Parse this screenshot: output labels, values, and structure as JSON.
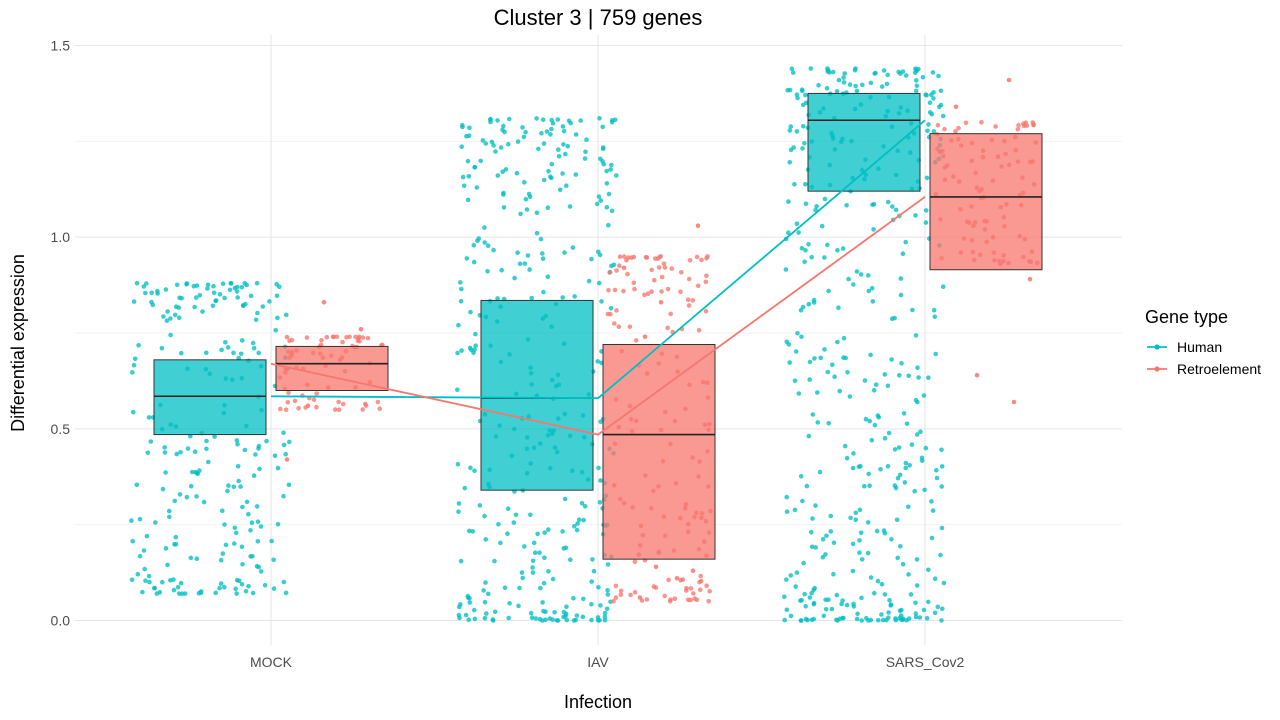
{
  "chart_data": {
    "type": "box",
    "title": "Cluster 3 | 759 genes",
    "xlabel": "Infection",
    "ylabel": "Differential expression",
    "categories": [
      "MOCK",
      "IAV",
      "SARS_Cov2"
    ],
    "ylim": [
      -0.05,
      1.53
    ],
    "yticks": [
      0.0,
      0.5,
      1.0,
      1.5
    ],
    "ytick_labels": [
      "0.0",
      "0.5",
      "1.0",
      "1.5"
    ],
    "grid": true,
    "legend": {
      "title": "Gene type",
      "position": "right"
    },
    "series": [
      {
        "name": "Human",
        "color": "#00BFC4",
        "boxes": [
          {
            "category": "MOCK",
            "q1": 0.485,
            "median": 0.585,
            "q3": 0.68
          },
          {
            "category": "IAV",
            "q1": 0.34,
            "median": 0.58,
            "q3": 0.835
          },
          {
            "category": "SARS_Cov2",
            "q1": 1.12,
            "median": 1.305,
            "q3": 1.375
          }
        ],
        "line_values": [
          0.585,
          0.58,
          1.305
        ],
        "jitter_ranges": [
          {
            "category": "MOCK",
            "min": 0.07,
            "max": 0.88,
            "n": 240
          },
          {
            "category": "IAV",
            "min": 0.0,
            "max": 1.31,
            "n": 360
          },
          {
            "category": "SARS_Cov2",
            "min": 0.0,
            "max": 1.44,
            "n": 420
          }
        ]
      },
      {
        "name": "Retroelement",
        "color": "#F8766D",
        "boxes": [
          {
            "category": "MOCK",
            "q1": 0.6,
            "median": 0.67,
            "q3": 0.715
          },
          {
            "category": "IAV",
            "q1": 0.16,
            "median": 0.485,
            "q3": 0.72
          },
          {
            "category": "SARS_Cov2",
            "q1": 0.915,
            "median": 1.105,
            "q3": 1.27
          }
        ],
        "line_values": [
          0.67,
          0.485,
          1.105
        ],
        "points": [
          {
            "category": "MOCK",
            "y": 0.42
          },
          {
            "category": "MOCK",
            "y": 0.83
          },
          {
            "category": "MOCK",
            "y": 0.76
          },
          {
            "category": "MOCK",
            "y": 0.56
          },
          {
            "category": "MOCK",
            "y": 0.65
          },
          {
            "category": "MOCK",
            "y": 0.7
          },
          {
            "category": "IAV",
            "y": 0.14
          },
          {
            "category": "IAV",
            "y": 0.13
          },
          {
            "category": "IAV",
            "y": 0.06
          },
          {
            "category": "IAV",
            "y": 0.11
          },
          {
            "category": "IAV",
            "y": 0.92
          },
          {
            "category": "IAV",
            "y": 0.83
          },
          {
            "category": "IAV",
            "y": 1.03
          },
          {
            "category": "IAV",
            "y": 0.74
          },
          {
            "category": "SARS_Cov2",
            "y": 1.41
          },
          {
            "category": "SARS_Cov2",
            "y": 1.34
          },
          {
            "category": "SARS_Cov2",
            "y": 1.0
          },
          {
            "category": "SARS_Cov2",
            "y": 0.89
          },
          {
            "category": "SARS_Cov2",
            "y": 0.64
          },
          {
            "category": "SARS_Cov2",
            "y": 0.57
          },
          {
            "category": "SARS_Cov2",
            "y": 0.96
          },
          {
            "category": "SARS_Cov2",
            "y": 1.21
          },
          {
            "category": "SARS_Cov2",
            "y": 1.15
          }
        ],
        "jitter_ranges": [
          {
            "category": "MOCK",
            "min": 0.55,
            "max": 0.74,
            "n": 70
          },
          {
            "category": "IAV",
            "min": 0.05,
            "max": 0.95,
            "n": 160
          },
          {
            "category": "SARS_Cov2",
            "min": 0.93,
            "max": 1.3,
            "n": 90
          }
        ]
      }
    ]
  }
}
